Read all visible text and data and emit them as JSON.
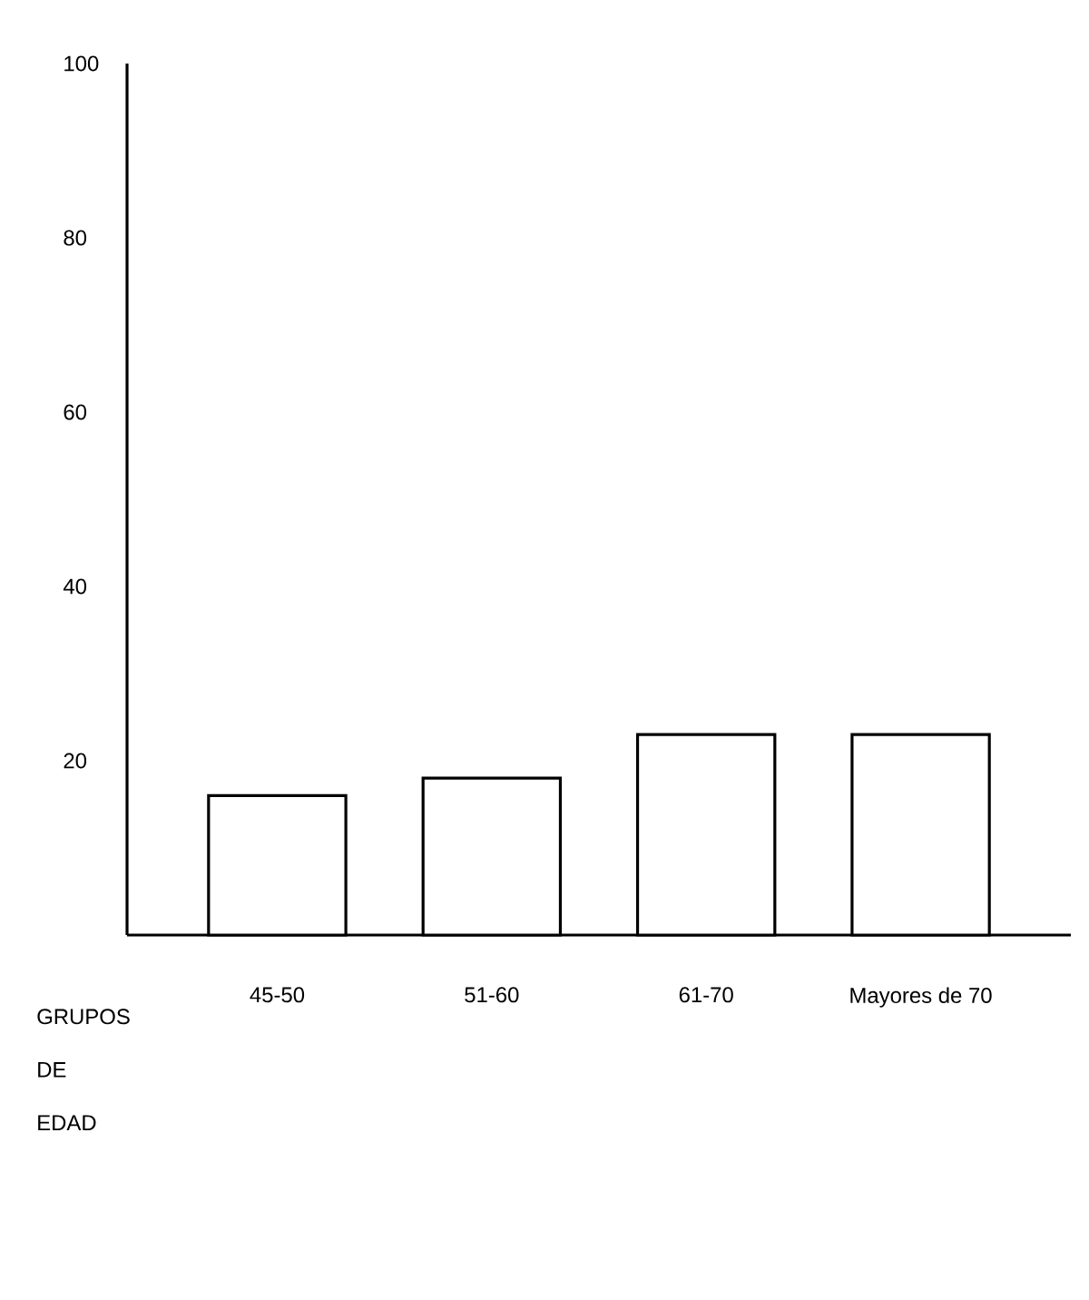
{
  "chart_data": {
    "type": "bar",
    "xlabel": "GRUPOS DE EDAD",
    "categories": [
      "45-50",
      "51-60",
      "61-70",
      "Mayores de 70"
    ],
    "values": [
      16,
      18,
      23,
      23
    ],
    "color": "#000000",
    "ylim": [
      0,
      100
    ],
    "yticks": [
      20,
      40,
      60,
      80,
      100
    ],
    "grid": false
  }
}
